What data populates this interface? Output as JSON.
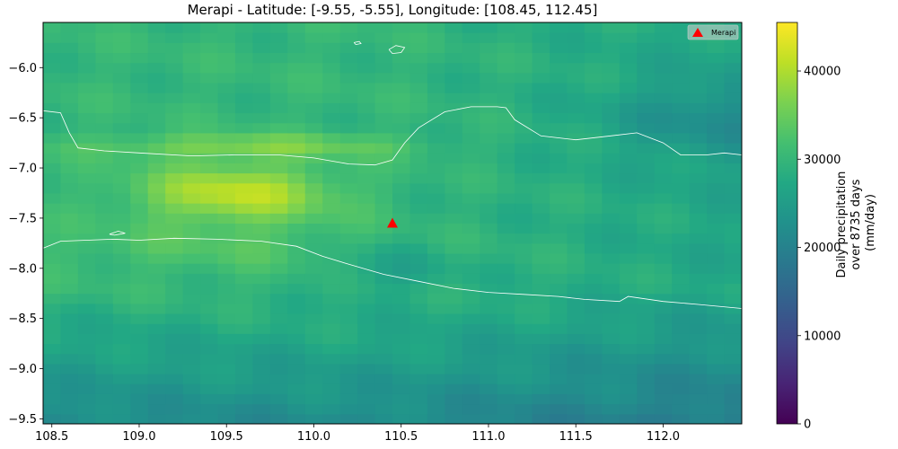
{
  "title": "Merapi - Latitude: [-9.55, -5.55], Longitude: [108.45, 112.45]",
  "map": {
    "lon_range": [
      108.45,
      112.45
    ],
    "lat_range": [
      -9.55,
      -5.55
    ],
    "x_ticks": [
      {
        "value": 108.5,
        "label": "108.5"
      },
      {
        "value": 109.0,
        "label": "109.0"
      },
      {
        "value": 109.5,
        "label": "109.5"
      },
      {
        "value": 110.0,
        "label": "110.0"
      },
      {
        "value": 110.5,
        "label": "110.5"
      },
      {
        "value": 111.0,
        "label": "111.0"
      },
      {
        "value": 111.5,
        "label": "111.5"
      },
      {
        "value": 112.0,
        "label": "112.0"
      }
    ],
    "y_ticks": [
      {
        "value": -6.0,
        "label": "−6.0"
      },
      {
        "value": -6.5,
        "label": "−6.5"
      },
      {
        "value": -7.0,
        "label": "−7.0"
      },
      {
        "value": -7.5,
        "label": "−7.5"
      },
      {
        "value": -8.0,
        "label": "−8.0"
      },
      {
        "value": -8.5,
        "label": "−8.5"
      },
      {
        "value": -9.0,
        "label": "−9.0"
      },
      {
        "value": -9.5,
        "label": "−9.5"
      }
    ],
    "marker": {
      "name": "Merapi",
      "lon": 110.45,
      "lat": -7.55,
      "color": "#ff0000"
    },
    "legend": {
      "label": "Merapi",
      "placement": "top-right"
    },
    "coastline_color": "#ffffff"
  },
  "colorbar": {
    "label_lines": [
      "Daily precipitation",
      "over 8735 days",
      "(mm/day)"
    ],
    "range": [
      0,
      45500
    ],
    "ticks": [
      {
        "value": 0,
        "label": "0"
      },
      {
        "value": 10000,
        "label": "10000"
      },
      {
        "value": 20000,
        "label": "20000"
      },
      {
        "value": 30000,
        "label": "30000"
      },
      {
        "value": 40000,
        "label": "40000"
      }
    ],
    "colormap": "viridis"
  }
}
